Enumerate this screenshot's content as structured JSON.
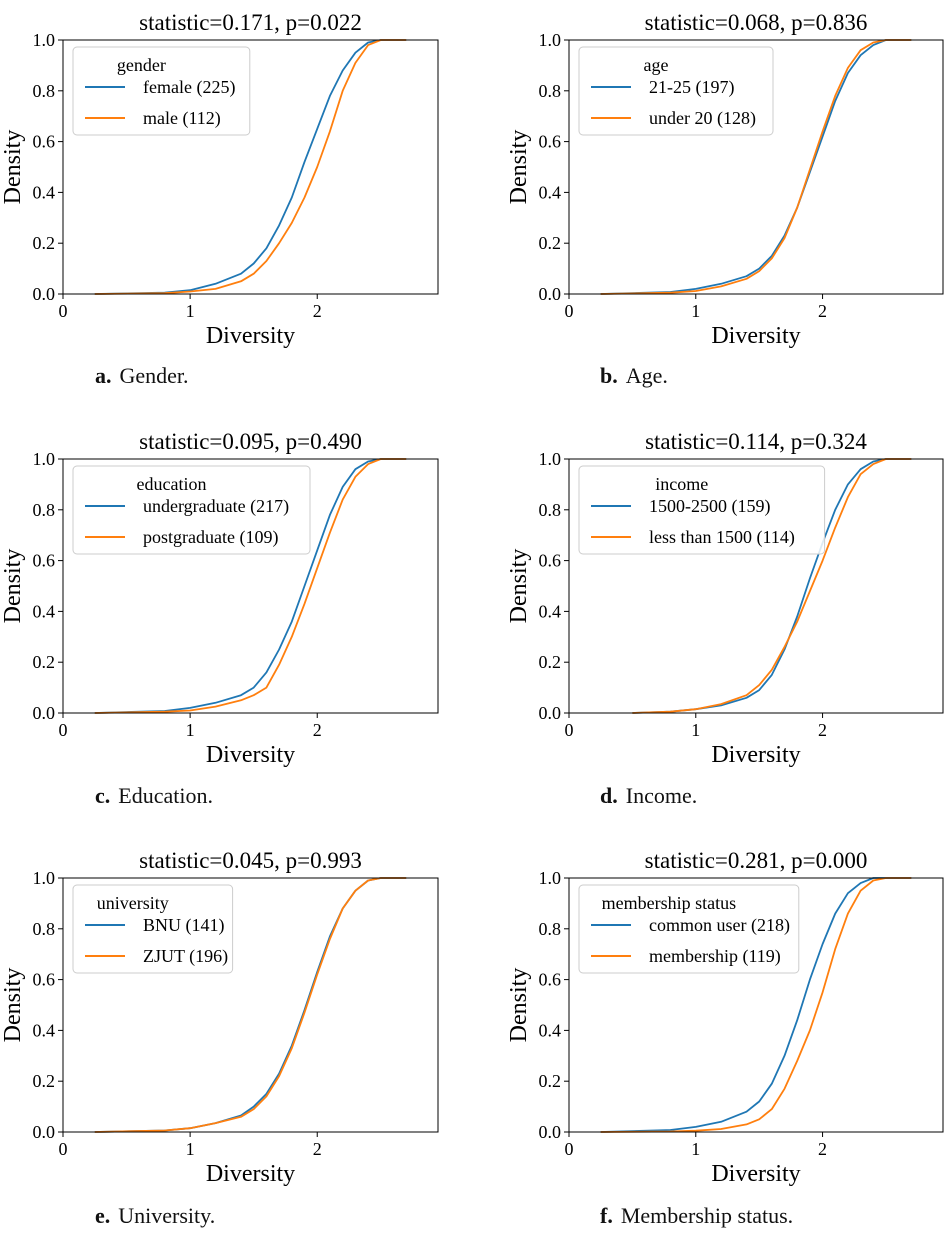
{
  "colors": {
    "blue": "#1f77b4",
    "orange": "#ff7f0e"
  },
  "chart_data": [
    {
      "type": "line",
      "title": "statistic=0.171, p=0.022",
      "xlabel": "Diversity",
      "ylabel": "Density",
      "xlim": [
        0,
        2.95
      ],
      "ylim": [
        0,
        1.0
      ],
      "xticks": [
        "0",
        "1",
        "2"
      ],
      "yticks": [
        "0.0",
        "0.2",
        "0.4",
        "0.6",
        "0.8",
        "1.0"
      ],
      "legend_title": "gender",
      "legend_position": "top-left",
      "caption_letter": "a.",
      "caption_text": "Gender.",
      "series": [
        {
          "name": "female (225)",
          "color": "#1f77b4",
          "x": [
            0.25,
            0.8,
            1.0,
            1.2,
            1.4,
            1.5,
            1.6,
            1.7,
            1.8,
            1.9,
            2.0,
            2.1,
            2.2,
            2.3,
            2.4,
            2.5,
            2.7
          ],
          "y": [
            0.0,
            0.005,
            0.015,
            0.04,
            0.08,
            0.12,
            0.18,
            0.27,
            0.38,
            0.52,
            0.65,
            0.78,
            0.88,
            0.95,
            0.99,
            1.0,
            1.0
          ]
        },
        {
          "name": "male (112)",
          "color": "#ff7f0e",
          "x": [
            0.25,
            0.8,
            1.0,
            1.2,
            1.4,
            1.5,
            1.6,
            1.7,
            1.8,
            1.9,
            2.0,
            2.1,
            2.2,
            2.3,
            2.4,
            2.5,
            2.7
          ],
          "y": [
            0.0,
            0.003,
            0.01,
            0.02,
            0.05,
            0.08,
            0.13,
            0.2,
            0.28,
            0.38,
            0.5,
            0.64,
            0.8,
            0.91,
            0.98,
            1.0,
            1.0
          ]
        }
      ]
    },
    {
      "type": "line",
      "title": "statistic=0.068, p=0.836",
      "xlabel": "Diversity",
      "ylabel": "Density",
      "xlim": [
        0,
        2.95
      ],
      "ylim": [
        0,
        1.0
      ],
      "xticks": [
        "0",
        "1",
        "2"
      ],
      "yticks": [
        "0.0",
        "0.2",
        "0.4",
        "0.6",
        "0.8",
        "1.0"
      ],
      "legend_title": "age",
      "legend_position": "top-left",
      "caption_letter": "b.",
      "caption_text": "Age.",
      "series": [
        {
          "name": "21-25 (197)",
          "color": "#1f77b4",
          "x": [
            0.25,
            0.8,
            1.0,
            1.2,
            1.4,
            1.5,
            1.6,
            1.7,
            1.8,
            1.9,
            2.0,
            2.1,
            2.2,
            2.3,
            2.4,
            2.5,
            2.7
          ],
          "y": [
            0.0,
            0.008,
            0.02,
            0.04,
            0.07,
            0.1,
            0.15,
            0.23,
            0.34,
            0.48,
            0.62,
            0.76,
            0.87,
            0.94,
            0.98,
            1.0,
            1.0
          ]
        },
        {
          "name": "under 20 (128)",
          "color": "#ff7f0e",
          "x": [
            0.25,
            0.8,
            1.0,
            1.2,
            1.4,
            1.5,
            1.6,
            1.7,
            1.8,
            1.9,
            2.0,
            2.1,
            2.2,
            2.3,
            2.4,
            2.5,
            2.7
          ],
          "y": [
            0.0,
            0.005,
            0.012,
            0.03,
            0.06,
            0.09,
            0.14,
            0.22,
            0.34,
            0.49,
            0.64,
            0.78,
            0.89,
            0.96,
            0.99,
            1.0,
            1.0
          ]
        }
      ]
    },
    {
      "type": "line",
      "title": "statistic=0.095, p=0.490",
      "xlabel": "Diversity",
      "ylabel": "Density",
      "xlim": [
        0,
        2.95
      ],
      "ylim": [
        0,
        1.0
      ],
      "xticks": [
        "0",
        "1",
        "2"
      ],
      "yticks": [
        "0.0",
        "0.2",
        "0.4",
        "0.6",
        "0.8",
        "1.0"
      ],
      "legend_title": "education",
      "legend_position": "top-left",
      "caption_letter": "c.",
      "caption_text": "Education.",
      "series": [
        {
          "name": "undergraduate (217)",
          "color": "#1f77b4",
          "x": [
            0.25,
            0.8,
            1.0,
            1.2,
            1.4,
            1.5,
            1.6,
            1.7,
            1.8,
            1.9,
            2.0,
            2.1,
            2.2,
            2.3,
            2.4,
            2.5,
            2.7
          ],
          "y": [
            0.0,
            0.008,
            0.02,
            0.04,
            0.07,
            0.1,
            0.16,
            0.25,
            0.36,
            0.5,
            0.64,
            0.78,
            0.89,
            0.96,
            0.99,
            1.0,
            1.0
          ]
        },
        {
          "name": "postgraduate (109)",
          "color": "#ff7f0e",
          "x": [
            0.25,
            0.8,
            1.0,
            1.2,
            1.4,
            1.5,
            1.6,
            1.7,
            1.8,
            1.9,
            2.0,
            2.1,
            2.2,
            2.3,
            2.4,
            2.5,
            2.7
          ],
          "y": [
            0.0,
            0.005,
            0.01,
            0.025,
            0.05,
            0.07,
            0.1,
            0.19,
            0.3,
            0.43,
            0.57,
            0.71,
            0.84,
            0.93,
            0.98,
            1.0,
            1.0
          ]
        }
      ]
    },
    {
      "type": "line",
      "title": "statistic=0.114, p=0.324",
      "xlabel": "Diversity",
      "ylabel": "Density",
      "xlim": [
        0,
        2.95
      ],
      "ylim": [
        0,
        1.0
      ],
      "xticks": [
        "0",
        "1",
        "2"
      ],
      "yticks": [
        "0.0",
        "0.2",
        "0.4",
        "0.6",
        "0.8",
        "1.0"
      ],
      "legend_title": "income",
      "legend_position": "top-left",
      "caption_letter": "d.",
      "caption_text": "Income.",
      "series": [
        {
          "name": "1500-2500 (159)",
          "color": "#1f77b4",
          "x": [
            0.5,
            0.8,
            1.0,
            1.2,
            1.4,
            1.5,
            1.6,
            1.7,
            1.8,
            1.9,
            2.0,
            2.1,
            2.2,
            2.3,
            2.4,
            2.5,
            2.7
          ],
          "y": [
            0.0,
            0.005,
            0.015,
            0.03,
            0.06,
            0.09,
            0.15,
            0.25,
            0.38,
            0.53,
            0.67,
            0.8,
            0.9,
            0.96,
            0.99,
            1.0,
            1.0
          ]
        },
        {
          "name": "less than 1500 (114)",
          "color": "#ff7f0e",
          "x": [
            0.5,
            0.8,
            1.0,
            1.2,
            1.4,
            1.5,
            1.6,
            1.7,
            1.8,
            1.9,
            2.0,
            2.1,
            2.2,
            2.3,
            2.4,
            2.5,
            2.7
          ],
          "y": [
            0.0,
            0.005,
            0.015,
            0.035,
            0.07,
            0.11,
            0.17,
            0.26,
            0.36,
            0.48,
            0.6,
            0.73,
            0.85,
            0.94,
            0.98,
            1.0,
            1.0
          ]
        }
      ]
    },
    {
      "type": "line",
      "title": "statistic=0.045, p=0.993",
      "xlabel": "Diversity",
      "ylabel": "Density",
      "xlim": [
        0,
        2.95
      ],
      "ylim": [
        0,
        1.0
      ],
      "xticks": [
        "0",
        "1",
        "2"
      ],
      "yticks": [
        "0.0",
        "0.2",
        "0.4",
        "0.6",
        "0.8",
        "1.0"
      ],
      "legend_title": "university",
      "legend_position": "top-left",
      "caption_letter": "e.",
      "caption_text": "University.",
      "series": [
        {
          "name": "BNU (141)",
          "color": "#1f77b4",
          "x": [
            0.25,
            0.8,
            1.0,
            1.2,
            1.4,
            1.5,
            1.6,
            1.7,
            1.8,
            1.9,
            2.0,
            2.1,
            2.2,
            2.3,
            2.4,
            2.5,
            2.7
          ],
          "y": [
            0.0,
            0.006,
            0.015,
            0.035,
            0.065,
            0.1,
            0.15,
            0.23,
            0.34,
            0.48,
            0.63,
            0.77,
            0.88,
            0.95,
            0.99,
            1.0,
            1.0
          ]
        },
        {
          "name": "ZJUT (196)",
          "color": "#ff7f0e",
          "x": [
            0.25,
            0.8,
            1.0,
            1.2,
            1.4,
            1.5,
            1.6,
            1.7,
            1.8,
            1.9,
            2.0,
            2.1,
            2.2,
            2.3,
            2.4,
            2.5,
            2.7
          ],
          "y": [
            0.0,
            0.006,
            0.015,
            0.035,
            0.06,
            0.09,
            0.14,
            0.22,
            0.33,
            0.47,
            0.62,
            0.76,
            0.88,
            0.95,
            0.99,
            1.0,
            1.0
          ]
        }
      ]
    },
    {
      "type": "line",
      "title": "statistic=0.281, p=0.000",
      "xlabel": "Diversity",
      "ylabel": "Density",
      "xlim": [
        0,
        2.95
      ],
      "ylim": [
        0,
        1.0
      ],
      "xticks": [
        "0",
        "1",
        "2"
      ],
      "yticks": [
        "0.0",
        "0.2",
        "0.4",
        "0.6",
        "0.8",
        "1.0"
      ],
      "legend_title": "membership status",
      "legend_position": "top-left",
      "caption_letter": "f.",
      "caption_text": "Membership status.",
      "series": [
        {
          "name": "common user (218)",
          "color": "#1f77b4",
          "x": [
            0.25,
            0.8,
            1.0,
            1.2,
            1.4,
            1.5,
            1.6,
            1.7,
            1.8,
            1.9,
            2.0,
            2.1,
            2.2,
            2.3,
            2.4,
            2.5,
            2.7
          ],
          "y": [
            0.0,
            0.008,
            0.02,
            0.04,
            0.08,
            0.12,
            0.19,
            0.3,
            0.44,
            0.6,
            0.74,
            0.86,
            0.94,
            0.98,
            1.0,
            1.0,
            1.0
          ]
        },
        {
          "name": "membership (119)",
          "color": "#ff7f0e",
          "x": [
            0.25,
            0.8,
            1.0,
            1.2,
            1.4,
            1.5,
            1.6,
            1.7,
            1.8,
            1.9,
            2.0,
            2.1,
            2.2,
            2.3,
            2.4,
            2.5,
            2.7
          ],
          "y": [
            0.0,
            0.002,
            0.005,
            0.012,
            0.03,
            0.05,
            0.09,
            0.17,
            0.28,
            0.4,
            0.55,
            0.72,
            0.86,
            0.95,
            0.99,
            1.0,
            1.0
          ]
        }
      ]
    }
  ]
}
